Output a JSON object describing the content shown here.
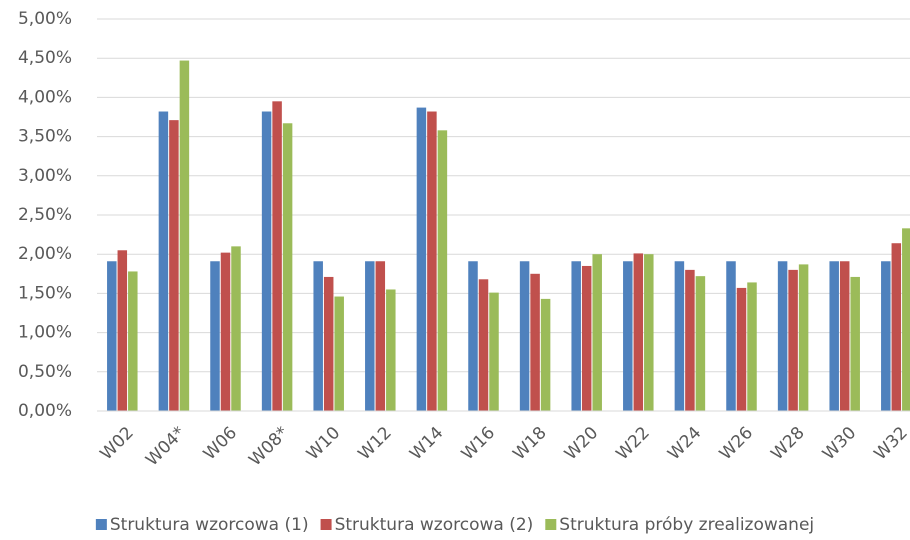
{
  "chart_data": {
    "type": "bar",
    "categories": [
      "W02",
      "W04*",
      "W06",
      "W08*",
      "W10",
      "W12",
      "W14",
      "W16",
      "W18",
      "W20",
      "W22",
      "W24",
      "W26",
      "W28",
      "W30",
      "W32"
    ],
    "series": [
      {
        "name": "Struktura wzorcowa (1)",
        "color": "#4f81bd",
        "values": [
          1.91,
          3.82,
          1.91,
          3.82,
          1.91,
          1.91,
          3.87,
          1.91,
          1.91,
          1.91,
          1.91,
          1.91,
          1.91,
          1.91,
          1.91,
          1.91
        ]
      },
      {
        "name": "Struktura wzorcowa (2)",
        "color": "#c0504d",
        "values": [
          2.05,
          3.71,
          2.02,
          3.95,
          1.71,
          1.91,
          3.82,
          1.68,
          1.75,
          1.85,
          2.01,
          1.8,
          1.57,
          1.8,
          1.91,
          2.14
        ]
      },
      {
        "name": "Struktura próby zrealizowanej",
        "color": "#9bbb59",
        "values": [
          1.78,
          4.47,
          2.1,
          3.67,
          1.46,
          1.55,
          3.58,
          1.51,
          1.43,
          2.0,
          2.0,
          1.72,
          1.64,
          1.87,
          1.71,
          2.33
        ]
      }
    ],
    "ylim": [
      0,
      5
    ],
    "yticks": [
      {
        "value": 0,
        "label": "0,00%"
      },
      {
        "value": 0.5,
        "label": "0,50%"
      },
      {
        "value": 1,
        "label": "1,00%"
      },
      {
        "value": 1.5,
        "label": "1,50%"
      },
      {
        "value": 2,
        "label": "2,00%"
      },
      {
        "value": 2.5,
        "label": "2,50%"
      },
      {
        "value": 3,
        "label": "3,00%"
      },
      {
        "value": 3.5,
        "label": "3,50%"
      },
      {
        "value": 4,
        "label": "4,00%"
      },
      {
        "value": 4.5,
        "label": "4,50%"
      },
      {
        "value": 5,
        "label": "5,00%"
      }
    ],
    "grid": true,
    "legend": "bottom"
  }
}
